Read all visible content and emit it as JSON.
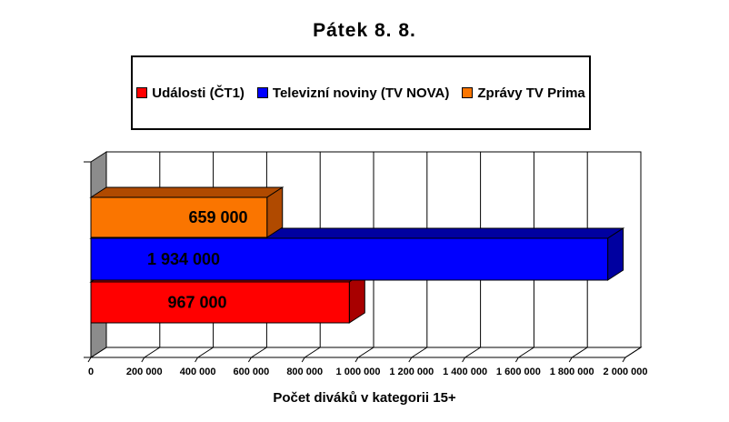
{
  "title": "Pátek 8. 8.",
  "chart_data": {
    "type": "bar",
    "orientation": "horizontal",
    "style": "3d",
    "title": "Pátek 8. 8.",
    "xlabel": "Počet diváků v kategorii 15+",
    "xlim": [
      0,
      2000000
    ],
    "x_tick_step": 200000,
    "x_tick_labels": [
      "0",
      "200 000",
      "400 000",
      "600 000",
      "800 000",
      "1 000 000",
      "1 200 000",
      "1 400 000",
      "1 600 000",
      "1 800 000",
      "2 000 000"
    ],
    "grid": true,
    "legend_position": "top",
    "series": [
      {
        "name": "Události (ČT1)",
        "value": 967000,
        "value_label": "967 000",
        "color": "#FF0000",
        "color_dark": "#A80000"
      },
      {
        "name": "Televizní noviny (TV NOVA)",
        "value": 1934000,
        "value_label": "1 934 000",
        "color": "#0000FF",
        "color_dark": "#0000A0"
      },
      {
        "name": "Zprávy TV Prima",
        "value": 659000,
        "value_label": "659 000",
        "color": "#FA7500",
        "color_dark": "#B04A00"
      }
    ],
    "bar_order_top_to_bottom": [
      "Zprávy TV Prima",
      "Televizní noviny (TV NOVA)",
      "Události (ČT1)"
    ],
    "wall_color": "#8C8C8C",
    "background_color": "#FFFFFF"
  }
}
